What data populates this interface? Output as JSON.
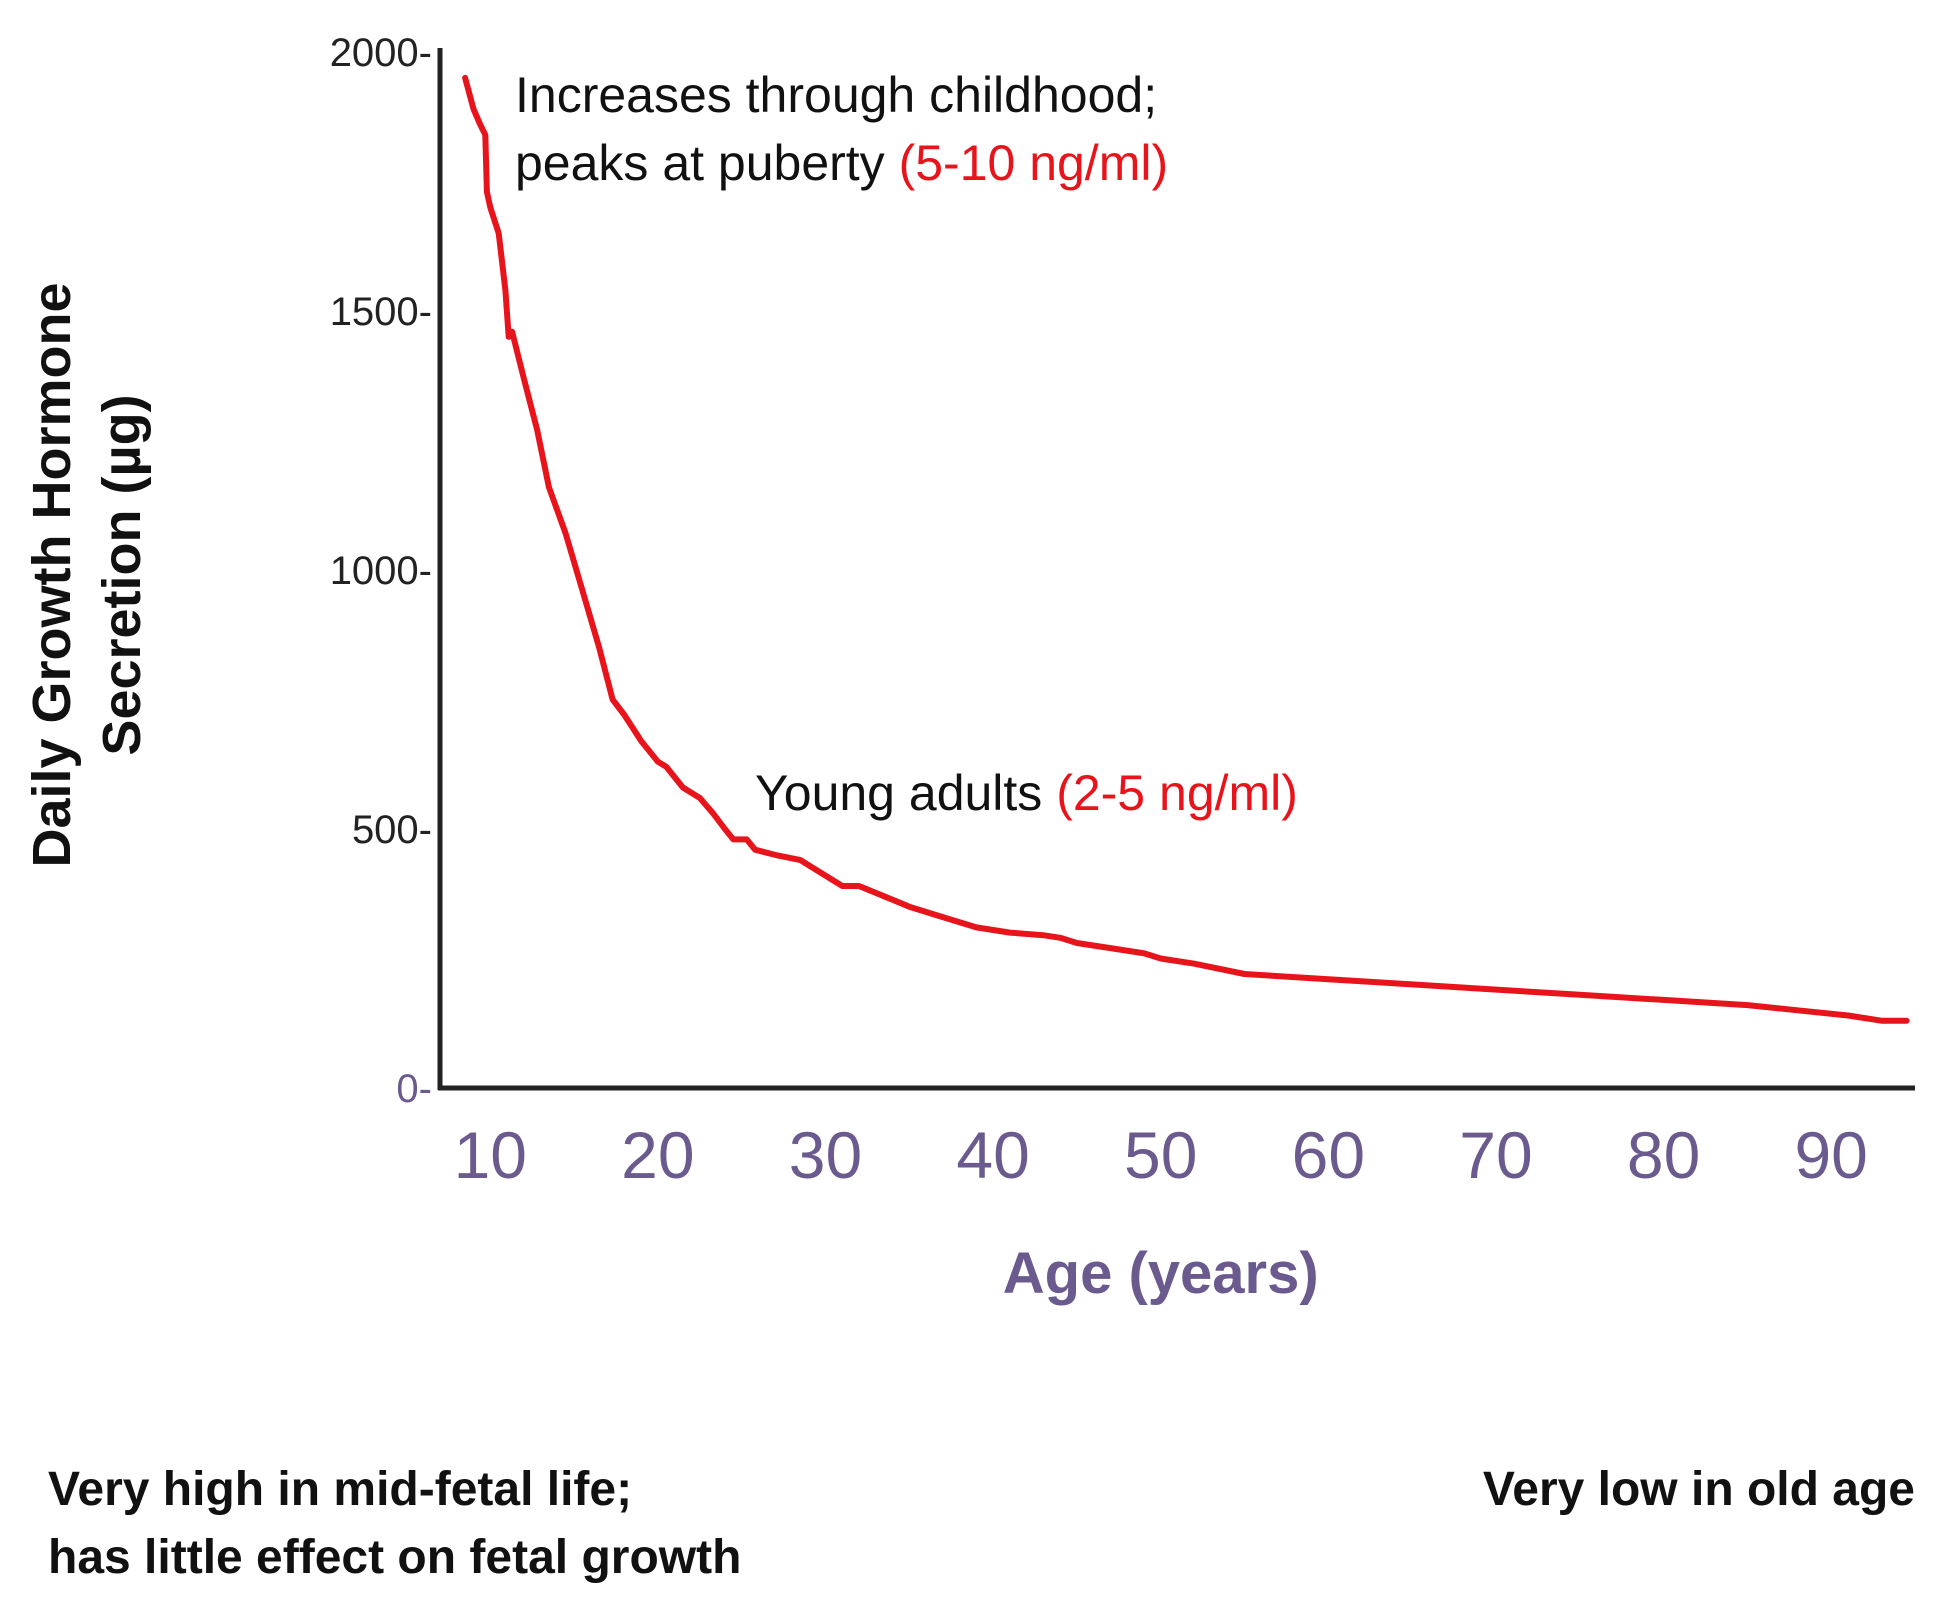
{
  "chart_data": {
    "type": "line",
    "title": "",
    "xlabel": "Age (years)",
    "ylabel_lines": [
      "Daily Growth Hormone",
      "Secretion (µg)"
    ],
    "xlim": [
      7,
      95
    ],
    "ylim": [
      0,
      2000
    ],
    "x_ticks": [
      10,
      20,
      30,
      40,
      50,
      60,
      70,
      80,
      90
    ],
    "y_ticks": [
      0,
      500,
      1000,
      1500,
      2000
    ],
    "y_tick_suffix": "-",
    "grid": false,
    "legend": "none",
    "line_color": "#e8141b",
    "axis_color": "#222222",
    "label_color": "#6b5a8e",
    "series": [
      {
        "x": [
          8.5,
          9.0,
          9.4,
          9.7,
          9.8,
          10.0,
          10.5,
          10.9,
          11.1,
          11.3,
          12.0,
          12.8,
          13.5,
          14.5,
          15.5,
          16.5,
          17.3,
          18.0,
          19.0,
          20.0,
          20.5,
          21.5,
          22.5,
          23.3,
          24.0,
          24.5,
          25.3,
          25.8,
          27.0,
          28.5,
          29.5,
          30.5,
          31.0,
          32.0,
          33.5,
          35.0,
          37.0,
          39.0,
          41.0,
          43.0,
          44.0,
          45.0,
          47.0,
          49.0,
          50.0,
          52.0,
          55.0,
          60.0,
          65.0,
          70.0,
          75.0,
          80.0,
          85.0,
          88.0,
          91.0,
          93.0,
          94.5
        ],
        "y": [
          1950,
          1890,
          1860,
          1840,
          1730,
          1700,
          1650,
          1540,
          1450,
          1460,
          1370,
          1270,
          1160,
          1070,
          960,
          850,
          750,
          720,
          670,
          630,
          620,
          580,
          560,
          530,
          500,
          480,
          480,
          460,
          450,
          440,
          420,
          400,
          390,
          390,
          370,
          350,
          330,
          310,
          300,
          295,
          290,
          280,
          270,
          260,
          250,
          240,
          220,
          210,
          200,
          190,
          180,
          170,
          160,
          150,
          140,
          130,
          130
        ]
      }
    ],
    "annotations": [
      {
        "lines": [
          [
            {
              "text": "Increases through childhood;",
              "accent": false
            }
          ],
          [
            {
              "text": "peaks at puberty ",
              "accent": false
            },
            {
              "text": "(5-10 ng/ml)",
              "accent": true
            }
          ]
        ]
      },
      {
        "lines": [
          [
            {
              "text": "Young adults ",
              "accent": false
            },
            {
              "text": "(2-5 ng/ml)",
              "accent": true
            }
          ]
        ]
      }
    ],
    "notes": [
      {
        "lines": [
          "Very high in mid-fetal life;",
          "has little effect on fetal growth"
        ]
      },
      {
        "lines": [
          "Very low in old age"
        ]
      }
    ]
  }
}
